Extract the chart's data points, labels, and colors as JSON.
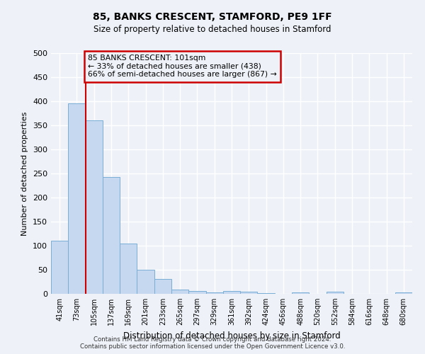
{
  "title1": "85, BANKS CRESCENT, STAMFORD, PE9 1FF",
  "title2": "Size of property relative to detached houses in Stamford",
  "xlabel": "Distribution of detached houses by size in Stamford",
  "ylabel": "Number of detached properties",
  "annotation_line1": "85 BANKS CRESCENT: 101sqm",
  "annotation_line2": "← 33% of detached houses are smaller (438)",
  "annotation_line3": "66% of semi-detached houses are larger (867) →",
  "categories": [
    "41sqm",
    "73sqm",
    "105sqm",
    "137sqm",
    "169sqm",
    "201sqm",
    "233sqm",
    "265sqm",
    "297sqm",
    "329sqm",
    "361sqm",
    "392sqm",
    "424sqm",
    "456sqm",
    "488sqm",
    "520sqm",
    "552sqm",
    "584sqm",
    "616sqm",
    "648sqm",
    "680sqm"
  ],
  "values": [
    110,
    395,
    360,
    243,
    105,
    50,
    31,
    9,
    6,
    3,
    6,
    5,
    2,
    0,
    3,
    0,
    5,
    0,
    0,
    0,
    3
  ],
  "bar_color": "#c5d8f0",
  "bar_edge_color": "#7aaed6",
  "vline_color": "#cc0000",
  "vline_x": 1.5,
  "annotation_box_color": "#cc0000",
  "background_color": "#eef2f8",
  "grid_color": "#ffffff",
  "ylim": [
    0,
    500
  ],
  "yticks": [
    0,
    50,
    100,
    150,
    200,
    250,
    300,
    350,
    400,
    450,
    500
  ],
  "footer1": "Contains HM Land Registry data © Crown copyright and database right 2024.",
  "footer2": "Contains public sector information licensed under the Open Government Licence v3.0."
}
